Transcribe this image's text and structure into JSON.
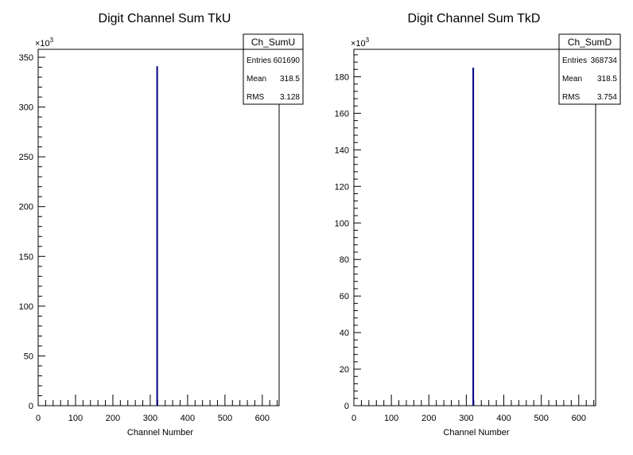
{
  "chart_data": [
    {
      "type": "bar",
      "title": "Digit Channel Sum TkU",
      "xlabel": "Channel Number",
      "ylabel": "",
      "y_multiplier": "×10",
      "y_multiplier_exp": "3",
      "xlim": [
        0,
        645
      ],
      "ylim": [
        0,
        358
      ],
      "x_ticks": [
        0,
        100,
        200,
        300,
        400,
        500,
        600
      ],
      "y_ticks": [
        0,
        50,
        100,
        150,
        200,
        250,
        300,
        350
      ],
      "x": [
        318
      ],
      "values": [
        341
      ],
      "color": "#000080",
      "stats": {
        "name": "Ch_SumU",
        "rows": [
          {
            "label": "Entries",
            "value": "601690"
          },
          {
            "label": "Mean",
            "value": "318.5"
          },
          {
            "label": "RMS",
            "value": "3.128"
          }
        ]
      }
    },
    {
      "type": "bar",
      "title": "Digit Channel Sum TkD",
      "xlabel": "Channel Number",
      "ylabel": "",
      "y_multiplier": "×10",
      "y_multiplier_exp": "3",
      "xlim": [
        0,
        645
      ],
      "ylim": [
        0,
        195
      ],
      "x_ticks": [
        0,
        100,
        200,
        300,
        400,
        500,
        600
      ],
      "y_ticks": [
        0,
        20,
        40,
        60,
        80,
        100,
        120,
        140,
        160,
        180
      ],
      "x": [
        318
      ],
      "values": [
        185
      ],
      "color": "#000080",
      "stats": {
        "name": "Ch_SumD",
        "rows": [
          {
            "label": "Entries",
            "value": "368734"
          },
          {
            "label": "Mean",
            "value": "318.5"
          },
          {
            "label": "RMS",
            "value": "3.754"
          }
        ]
      }
    }
  ]
}
